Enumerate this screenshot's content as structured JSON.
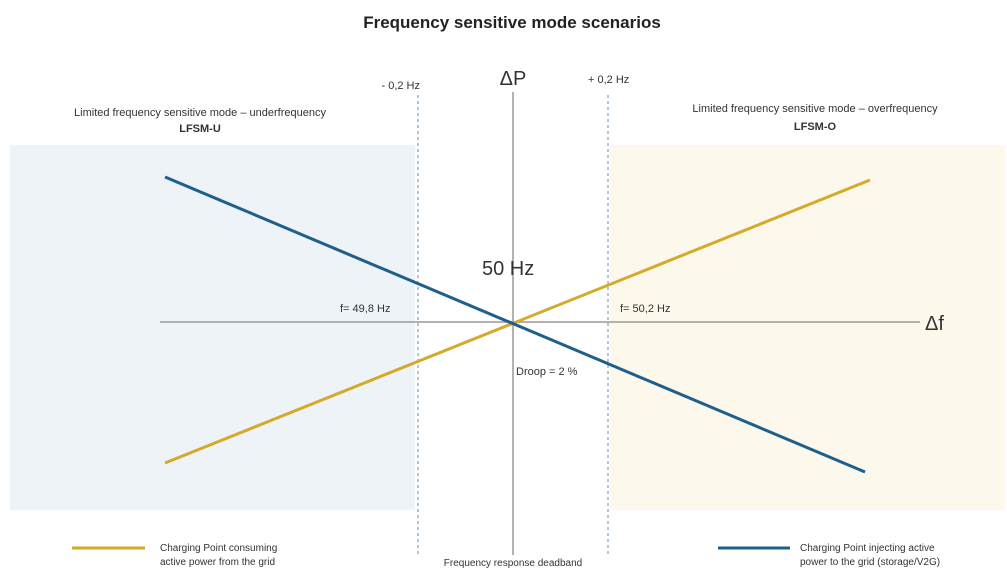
{
  "title": "Frequency sensitive mode scenarios",
  "axes": {
    "vertical": "ΔP",
    "horizontal": "Δf",
    "center": "50 Hz"
  },
  "deadband": {
    "minus": "- 0,2 Hz",
    "plus": "+ 0,2 Hz",
    "label": "Frequency response deadband"
  },
  "regions": [
    {
      "description": "Limited frequency sensitive mode – underfrequency",
      "code": "LFSM-U"
    },
    {
      "description": "Limited frequency sensitive mode – overfrequency",
      "code": "LFSM-O"
    }
  ],
  "annotations": {
    "low_frequency": "f= 49,8 Hz",
    "high_frequency": "f= 50,2 Hz",
    "droop": "Droop = 2 %"
  },
  "legend": [
    {
      "lines": [
        "Charging Point consuming",
        "active power from the grid"
      ]
    },
    {
      "lines": [
        "Charging Point injecting active",
        "power to the grid (storage/V2G)"
      ]
    }
  ]
}
